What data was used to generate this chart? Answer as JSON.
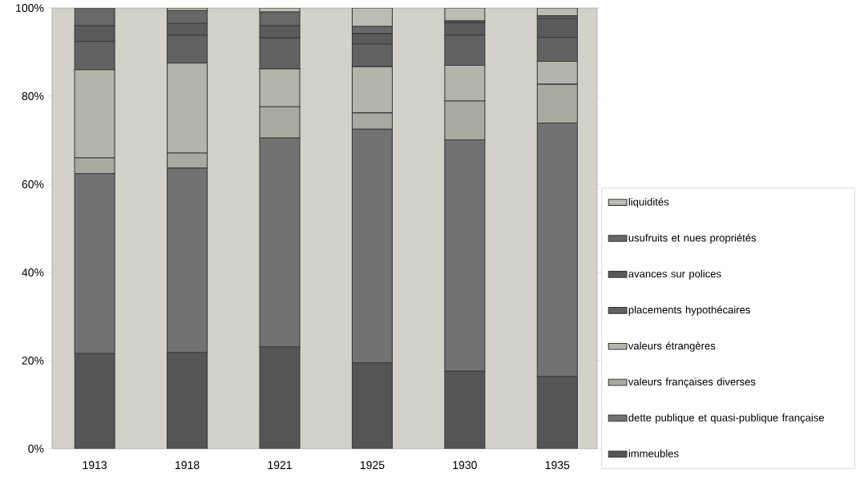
{
  "chart_data": {
    "type": "bar",
    "stacked": true,
    "categories": [
      "1913",
      "1918",
      "1921",
      "1925",
      "1930",
      "1935"
    ],
    "series": [
      {
        "name": "immeubles",
        "color": "#555555",
        "values": [
          21.6,
          21.8,
          23.1,
          19.5,
          17.6,
          16.4
        ]
      },
      {
        "name": "dette publique et quasi-publique française",
        "color": "#727272",
        "values": [
          40.8,
          41.9,
          47.4,
          53.0,
          52.5,
          57.5
        ]
      },
      {
        "name": "valeurs françaises diverses",
        "color": "#a9a9a1",
        "values": [
          3.6,
          3.4,
          7.1,
          3.7,
          8.8,
          8.8
        ]
      },
      {
        "name": "valeurs étrangères",
        "color": "#b4b4ac",
        "values": [
          20.0,
          20.4,
          8.6,
          10.5,
          8.1,
          5.2
        ]
      },
      {
        "name": "placements hypothécaires",
        "color": "#626262",
        "values": [
          6.4,
          6.3,
          7.0,
          5.1,
          6.8,
          5.4
        ]
      },
      {
        "name": "avances sur polices",
        "color": "#5a5a5a",
        "values": [
          3.6,
          2.7,
          2.8,
          2.4,
          2.9,
          4.3
        ]
      },
      {
        "name": "usufruits et nues propriétés",
        "color": "#686868",
        "values": [
          4.0,
          2.9,
          3.1,
          1.6,
          0.4,
          0.6
        ]
      },
      {
        "name": "liquidités",
        "color": "#bcbcb4",
        "values": [
          0.0,
          0.6,
          0.9,
          4.2,
          2.9,
          1.8
        ]
      }
    ],
    "ylim": [
      0,
      100
    ],
    "yticks": [
      {
        "value": 0,
        "label": "0%"
      },
      {
        "value": 20,
        "label": "20%"
      },
      {
        "value": 40,
        "label": "40%"
      },
      {
        "value": 60,
        "label": "60%"
      },
      {
        "value": 80,
        "label": "80%"
      },
      {
        "value": 100,
        "label": "100%"
      }
    ],
    "grid": false,
    "legend": "right"
  }
}
